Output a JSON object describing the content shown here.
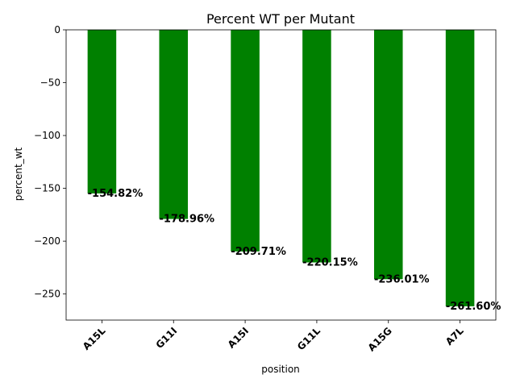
{
  "chart_data": {
    "type": "bar",
    "title": "Percent WT per Mutant",
    "xlabel": "position",
    "ylabel": "percent_wt",
    "categories": [
      "A15L",
      "G11I",
      "A15I",
      "G11L",
      "A15G",
      "A7L"
    ],
    "values": [
      -154.82,
      -178.96,
      -209.71,
      -220.15,
      -236.01,
      -261.6
    ],
    "data_labels": [
      "-154.82%",
      "-178.96%",
      "-209.71%",
      "-220.15%",
      "-236.01%",
      "-261.60%"
    ],
    "yticks": [
      0,
      -50,
      -100,
      -150,
      -200,
      -250
    ],
    "ytick_labels": [
      "0",
      "−50",
      "−100",
      "−150",
      "−200",
      "−250"
    ],
    "ylim": [
      -274.68,
      0
    ],
    "grid": false,
    "legend": "none",
    "bar_color": "#008000",
    "xtick_rotation": "45 degrees"
  }
}
